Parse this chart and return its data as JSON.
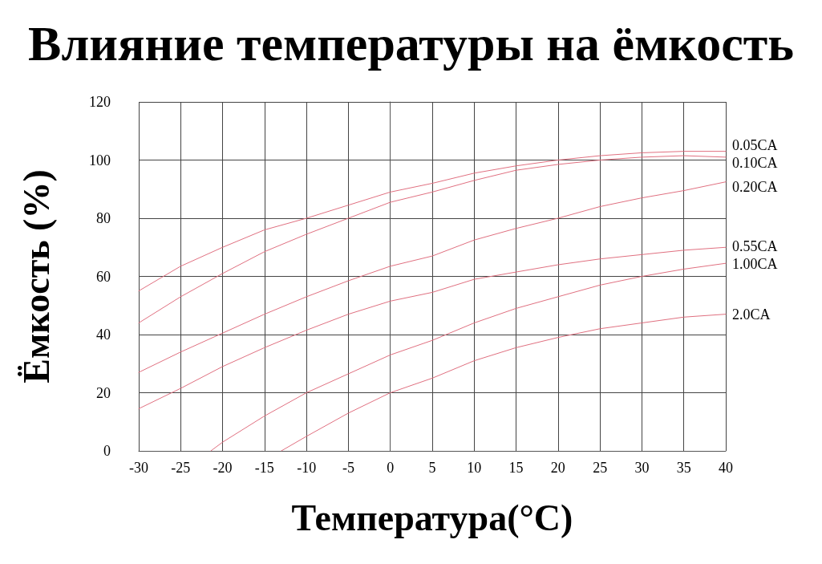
{
  "chart_data": {
    "type": "line",
    "title": "Влияние температуры на ёмкость",
    "xlabel": "Температура(°C)",
    "ylabel": "Ёмкость (%)",
    "xlim": [
      -30,
      40
    ],
    "xticks": [
      -30,
      -25,
      -20,
      -15,
      -10,
      -5,
      0,
      5,
      10,
      15,
      20,
      25,
      30,
      35,
      40
    ],
    "ylim": [
      0,
      120
    ],
    "yticks": [
      0,
      20,
      40,
      60,
      80,
      100,
      120
    ],
    "grid": true,
    "marker": "none",
    "line_style": "solid",
    "legend": false,
    "series": [
      {
        "name": "0.05CA",
        "color": "#e07080",
        "x": [
          -30,
          -25,
          -20,
          -15,
          -10,
          -5,
          0,
          5,
          10,
          15,
          20,
          25,
          30,
          35,
          40
        ],
        "values": [
          55,
          63.5,
          70,
          76,
          80,
          84.5,
          89,
          92,
          95.5,
          98,
          100,
          101.5,
          102.5,
          103,
          103
        ]
      },
      {
        "name": "0.10CA",
        "color": "#e07080",
        "x": [
          -30,
          -25,
          -20,
          -15,
          -10,
          -5,
          0,
          5,
          10,
          15,
          20,
          25,
          30,
          35,
          40
        ],
        "values": [
          44,
          53,
          61,
          68.5,
          74.5,
          80,
          85.5,
          89,
          93,
          96.5,
          98.5,
          100,
          101,
          101.5,
          101
        ]
      },
      {
        "name": "0.20CA",
        "color": "#e07080",
        "x": [
          -30,
          -25,
          -20,
          -15,
          -10,
          -5,
          0,
          5,
          10,
          15,
          20,
          25,
          30,
          35,
          40
        ],
        "values": [
          27,
          34,
          40.5,
          47,
          53,
          58.5,
          63.5,
          67,
          72.5,
          76.5,
          80,
          84,
          87,
          89.5,
          92.5
        ]
      },
      {
        "name": "0.55CA",
        "color": "#e07080",
        "x": [
          -30,
          -25,
          -20,
          -15,
          -10,
          -5,
          0,
          5,
          10,
          15,
          20,
          25,
          30,
          35,
          40
        ],
        "values": [
          14.5,
          21.5,
          29,
          35.5,
          41.5,
          47,
          51.5,
          54.5,
          59,
          61.5,
          64,
          66,
          67.5,
          69,
          70
        ]
      },
      {
        "name": "1.00CA",
        "color": "#e07080",
        "x": [
          -21.4,
          -20,
          -15,
          -10,
          -5,
          0,
          5,
          10,
          15,
          20,
          25,
          30,
          35,
          40
        ],
        "values": [
          0,
          3,
          12,
          20,
          26.5,
          33,
          38,
          44,
          49,
          53,
          57,
          60,
          62.5,
          64.5
        ]
      },
      {
        "name": "2.0CA",
        "color": "#e07080",
        "x": [
          -13,
          -10,
          -5,
          0,
          5,
          10,
          15,
          20,
          25,
          30,
          35,
          40
        ],
        "values": [
          0,
          5,
          13,
          20,
          25,
          31,
          35.5,
          39,
          42,
          44,
          46,
          47
        ]
      }
    ]
  }
}
